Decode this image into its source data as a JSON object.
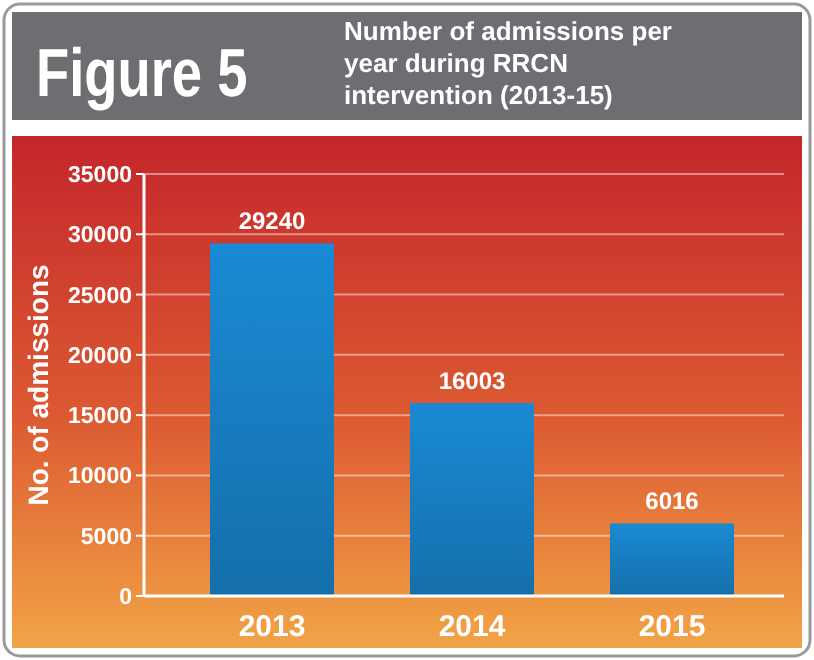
{
  "chart_data": {
    "type": "bar",
    "title": "Figure 5",
    "subtitle": "Number of admissions per year during RRCN intervention (2013-15)",
    "ylabel": "No. of admissions",
    "categories": [
      "2013",
      "2014",
      "2015"
    ],
    "values": [
      29240,
      16003,
      6016
    ],
    "color": "#1a8ad4",
    "ylim": [
      0,
      35000
    ],
    "yticks": [
      0,
      5000,
      10000,
      15000,
      20000,
      25000,
      30000,
      35000
    ],
    "grid": "y",
    "data_labels": true
  }
}
